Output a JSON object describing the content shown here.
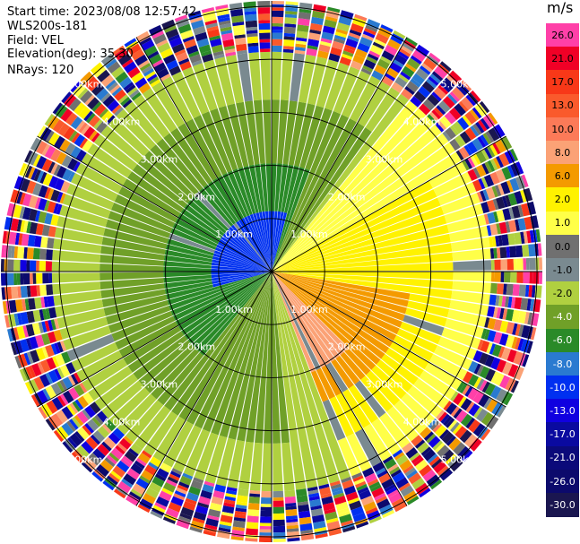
{
  "header": {
    "start_time": "Start time: 2023/08/08 12:57:42",
    "instrument": "WLS200s-181",
    "field": "Field: VEL",
    "elevation": "Elevation(deg): 35.30",
    "nrays": "NRays: 120"
  },
  "chart_data": {
    "type": "heatmap",
    "projection": "polar-ppi",
    "field": "VEL",
    "elevation_deg": 35.3,
    "nrays": 120,
    "range_rings_km": [
      1.0,
      2.0,
      3.0,
      4.0,
      5.0
    ],
    "ring_labels": [
      "1.00km",
      "2.00km",
      "3.00km",
      "4.00km",
      "5.00km"
    ],
    "ring_label_bearings_deg": [
      45,
      135,
      225,
      315
    ],
    "max_range_km": 5.1,
    "spokes_deg": [
      0,
      30,
      60,
      90,
      120,
      150,
      180,
      210,
      240,
      270,
      300,
      330
    ],
    "colorbar": {
      "unit": "m/s",
      "ticks": [
        "26.0",
        "21.0",
        "17.0",
        "13.0",
        "10.0",
        "8.0",
        "6.0",
        "2.0",
        "1.0",
        "0.0",
        "-1.0",
        "-2.0",
        "-4.0",
        "-6.0",
        "-8.0",
        "-10.0",
        "-13.0",
        "-17.0",
        "-21.0",
        "-26.0",
        "-30.0"
      ],
      "colors": [
        "#ff40a8",
        "#f00026",
        "#f83818",
        "#fa5a2c",
        "#fc7a58",
        "#fba276",
        "#f49a00",
        "#fff200",
        "#ffff48",
        "#707070",
        "#7a8a90",
        "#b0d040",
        "#70a028",
        "#2a8a28",
        "#2a7ad0",
        "#0030f0",
        "#1000e0",
        "#0a0aa0",
        "#0b0a7a",
        "#0c0a6c",
        "#1a1650"
      ],
      "text_colors": [
        "#000000",
        "#000000",
        "#000000",
        "#000000",
        "#000000",
        "#000000",
        "#000000",
        "#000000",
        "#000000",
        "#000000",
        "#000000",
        "#000000",
        "#ffffff",
        "#ffffff",
        "#ffffff",
        "#ffffff",
        "#ffffff",
        "#ffffff",
        "#ffffff",
        "#ffffff",
        "#ffffff"
      ]
    },
    "field_pattern": {
      "noise_start_km": 4.1,
      "regions": [
        {
          "name": "approaching-core",
          "center_bearing_deg": 315,
          "half_width_deg": 60,
          "r_from_km": 0.0,
          "r_to_km": 1.1,
          "value": -10.0
        },
        {
          "name": "approaching-inner",
          "center_bearing_deg": 300,
          "half_width_deg": 80,
          "r_from_km": 0.0,
          "r_to_km": 2.0,
          "value": -6.0
        },
        {
          "name": "approaching-mid",
          "center_bearing_deg": 285,
          "half_width_deg": 110,
          "r_from_km": 0.0,
          "r_to_km": 3.2,
          "value": -4.0
        },
        {
          "name": "approaching-edge",
          "center_bearing_deg": 280,
          "half_width_deg": 120,
          "r_from_km": 0.0,
          "r_to_km": 4.1,
          "value": -2.0
        },
        {
          "name": "receding-core",
          "center_bearing_deg": 160,
          "half_width_deg": 25,
          "r_from_km": 0.0,
          "r_to_km": 2.0,
          "value": 8.0
        },
        {
          "name": "receding-inner",
          "center_bearing_deg": 145,
          "half_width_deg": 45,
          "r_from_km": 0.0,
          "r_to_km": 2.6,
          "value": 6.0
        },
        {
          "name": "receding-mid",
          "center_bearing_deg": 130,
          "half_width_deg": 70,
          "r_from_km": 0.0,
          "r_to_km": 3.4,
          "value": 2.0
        },
        {
          "name": "receding-edge",
          "center_bearing_deg": 90,
          "half_width_deg": 90,
          "r_from_km": 0.0,
          "r_to_km": 4.1,
          "value": 1.0
        }
      ],
      "transition_value": -1.0
    }
  }
}
